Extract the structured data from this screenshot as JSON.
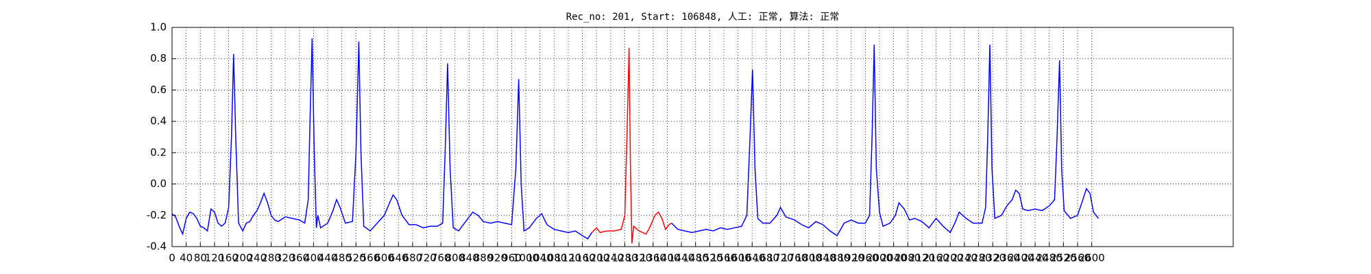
{
  "chart_data": {
    "type": "line",
    "title": "Rec_no: 201, Start: 106848, 人工: 正常, 算法: 正常",
    "xlim": [
      0,
      3000
    ],
    "ylim": [
      -0.4,
      1.0
    ],
    "xticks": [
      0,
      40,
      80,
      120,
      160,
      200,
      240,
      280,
      320,
      360,
      400,
      440,
      480,
      520,
      560,
      600,
      640,
      680,
      720,
      760,
      800,
      840,
      880,
      920,
      960,
      1000,
      1040,
      1080,
      1120,
      1160,
      1200,
      1240,
      1280,
      1320,
      1360,
      1400,
      1440,
      1480,
      1520,
      1560,
      1600,
      1640,
      1680,
      1720,
      1760,
      1800,
      1840,
      1880,
      1920,
      1960,
      2000,
      2040,
      2080,
      2120,
      2160,
      2200,
      2240,
      2280,
      2320,
      2360,
      2400,
      2440,
      2480,
      2520,
      2560,
      2600
    ],
    "yticks": [
      -0.4,
      -0.2,
      {
        "value": 0,
        "label": "0.0"
      },
      0.2,
      0.4,
      0.6,
      0.8,
      {
        "value": 1,
        "label": "1.0"
      }
    ],
    "grid": true,
    "series": [
      {
        "color": "#0000ff",
        "x": [
          0,
          10,
          20,
          30,
          40,
          50,
          60,
          70,
          80,
          90,
          100,
          110,
          120,
          130,
          140,
          150,
          160,
          168,
          174,
          180,
          188,
          200,
          210,
          220,
          230,
          240,
          250,
          260,
          270,
          280,
          290,
          300,
          320,
          340,
          360,
          375,
          385,
          390,
          396,
          402,
          408,
          412,
          420,
          440,
          455,
          465,
          475,
          490,
          510,
          520,
          528,
          534,
          542,
          560,
          580,
          600,
          615,
          625,
          635,
          650,
          670,
          690,
          710,
          730,
          750,
          765,
          772,
          779,
          786,
          795,
          810,
          830,
          850,
          865,
          880,
          900,
          920,
          940,
          960,
          972,
          980,
          987,
          995,
          1010,
          1030,
          1045,
          1060,
          1080,
          1100,
          1120,
          1140,
          1160,
          1175,
          1187
        ],
        "values": [
          -0.19,
          -0.21,
          -0.27,
          -0.32,
          -0.22,
          -0.18,
          -0.19,
          -0.22,
          -0.27,
          -0.28,
          -0.3,
          -0.16,
          -0.18,
          -0.25,
          -0.27,
          -0.25,
          -0.15,
          0.3,
          0.83,
          0.3,
          -0.25,
          -0.3,
          -0.25,
          -0.24,
          -0.2,
          -0.17,
          -0.12,
          -0.06,
          -0.12,
          -0.2,
          -0.23,
          -0.24,
          -0.21,
          -0.22,
          -0.23,
          -0.25,
          -0.1,
          0.4,
          0.93,
          0.2,
          -0.28,
          -0.2,
          -0.28,
          -0.25,
          -0.17,
          -0.1,
          -0.15,
          -0.25,
          -0.24,
          0.2,
          0.91,
          0.2,
          -0.27,
          -0.3,
          -0.25,
          -0.2,
          -0.12,
          -0.07,
          -0.1,
          -0.2,
          -0.26,
          -0.26,
          -0.28,
          -0.27,
          -0.27,
          -0.25,
          0.2,
          0.77,
          0.1,
          -0.28,
          -0.3,
          -0.24,
          -0.18,
          -0.2,
          -0.24,
          -0.25,
          -0.24,
          -0.25,
          -0.26,
          0.1,
          0.67,
          0.0,
          -0.3,
          -0.28,
          -0.22,
          -0.19,
          -0.26,
          -0.29,
          -0.3,
          -0.31,
          -0.3,
          -0.33,
          -0.35,
          -0.31
        ]
      },
      {
        "color": "#ff0000",
        "x": [
          1187,
          1200,
          1210,
          1230,
          1250,
          1270,
          1280,
          1286,
          1292,
          1296,
          1300,
          1305,
          1320,
          1340,
          1350,
          1365,
          1375,
          1385,
          1395,
          1405,
          1412
        ],
        "values": [
          -0.31,
          -0.28,
          -0.31,
          -0.3,
          -0.3,
          -0.29,
          -0.2,
          0.3,
          0.87,
          0.1,
          -0.38,
          -0.27,
          -0.3,
          -0.32,
          -0.28,
          -0.2,
          -0.18,
          -0.22,
          -0.29,
          -0.26,
          -0.25
        ]
      },
      {
        "color": "#0000ff",
        "x": [
          1412,
          1430,
          1450,
          1470,
          1490,
          1510,
          1530,
          1550,
          1570,
          1590,
          1610,
          1625,
          1634,
          1641,
          1648,
          1656,
          1670,
          1690,
          1710,
          1720,
          1735,
          1760,
          1780,
          1800,
          1820,
          1840,
          1860,
          1880,
          1900,
          1920,
          1940,
          1960,
          1972,
          1979,
          1985,
          1991,
          2000,
          2010,
          2030,
          2045,
          2055,
          2070,
          2085,
          2100,
          2120,
          2140,
          2160,
          2180,
          2200,
          2215,
          2225,
          2245,
          2265,
          2290,
          2300,
          2306,
          2312,
          2318,
          2326,
          2345,
          2360,
          2375,
          2385,
          2395,
          2405,
          2420,
          2440,
          2460,
          2480,
          2495,
          2502,
          2509,
          2515,
          2522,
          2540,
          2560,
          2575,
          2585,
          2595,
          2605,
          2619
        ],
        "values": [
          -0.25,
          -0.29,
          -0.3,
          -0.31,
          -0.3,
          -0.29,
          -0.3,
          -0.28,
          -0.29,
          -0.28,
          -0.27,
          -0.2,
          0.3,
          0.73,
          0.1,
          -0.22,
          -0.25,
          -0.25,
          -0.2,
          -0.15,
          -0.21,
          -0.23,
          -0.26,
          -0.28,
          -0.24,
          -0.26,
          -0.3,
          -0.33,
          -0.25,
          -0.23,
          -0.25,
          -0.25,
          -0.2,
          0.3,
          0.89,
          0.1,
          -0.18,
          -0.27,
          -0.25,
          -0.2,
          -0.12,
          -0.16,
          -0.23,
          -0.22,
          -0.24,
          -0.28,
          -0.22,
          -0.27,
          -0.31,
          -0.24,
          -0.18,
          -0.22,
          -0.25,
          -0.25,
          -0.15,
          0.3,
          0.89,
          0.1,
          -0.22,
          -0.2,
          -0.14,
          -0.1,
          -0.04,
          -0.06,
          -0.16,
          -0.17,
          -0.16,
          -0.17,
          -0.14,
          -0.1,
          0.3,
          0.79,
          0.1,
          -0.17,
          -0.22,
          -0.2,
          -0.1,
          -0.03,
          -0.06,
          -0.18,
          -0.22
        ]
      }
    ]
  }
}
